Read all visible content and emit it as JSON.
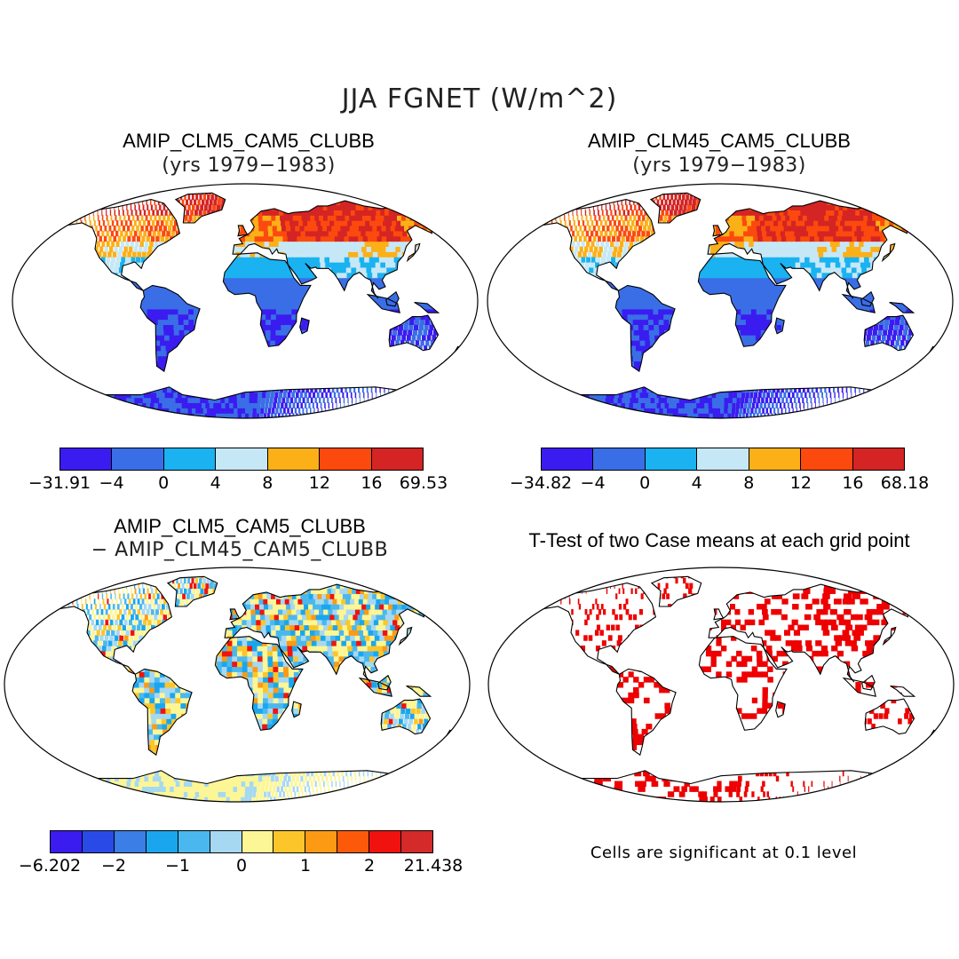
{
  "title": "JJA FGNET (W/m^2)",
  "panels": [
    {
      "title": "AMIP_CLM5_CAM5_CLUBB",
      "subtitle": "(yrs 1979−1983)",
      "type": "field",
      "colorbar": {
        "labels": [
          "−31.91",
          "−4",
          "0",
          "4",
          "8",
          "12",
          "16",
          "69.53"
        ],
        "colors": [
          "#3a1cf0",
          "#3a6ee6",
          "#1ab2f0",
          "#c6e8f6",
          "#fbb018",
          "#fc4a0e",
          "#d42424"
        ]
      }
    },
    {
      "title": "AMIP_CLM45_CAM5_CLUBB",
      "subtitle": "(yrs 1979−1983)",
      "type": "field",
      "colorbar": {
        "labels": [
          "−34.82",
          "−4",
          "0",
          "4",
          "8",
          "12",
          "16",
          "68.18"
        ],
        "colors": [
          "#3a1cf0",
          "#3a6ee6",
          "#1ab2f0",
          "#c6e8f6",
          "#fbb018",
          "#fc4a0e",
          "#d42424"
        ]
      }
    },
    {
      "title": "AMIP_CLM5_CAM5_CLUBB",
      "subtitle": "− AMIP_CLM45_CAM5_CLUBB",
      "type": "difference",
      "colorbar": {
        "labels": [
          "−6.202",
          "−2",
          "−1",
          "0",
          "1",
          "2",
          "21.438"
        ],
        "colors": [
          "#3a1cf0",
          "#2a4ae8",
          "#3a7ee6",
          "#1aa6ee",
          "#4ab8ee",
          "#a6d8f2",
          "#fcf696",
          "#fcc62a",
          "#fc9a14",
          "#fc5a0a",
          "#f0120e",
          "#d42a2a"
        ]
      }
    },
    {
      "title": "T-Test of two Case means at each grid point",
      "type": "ttest",
      "note": "Cells are significant at 0.1 level",
      "significant_color": "#ee0000"
    }
  ]
}
